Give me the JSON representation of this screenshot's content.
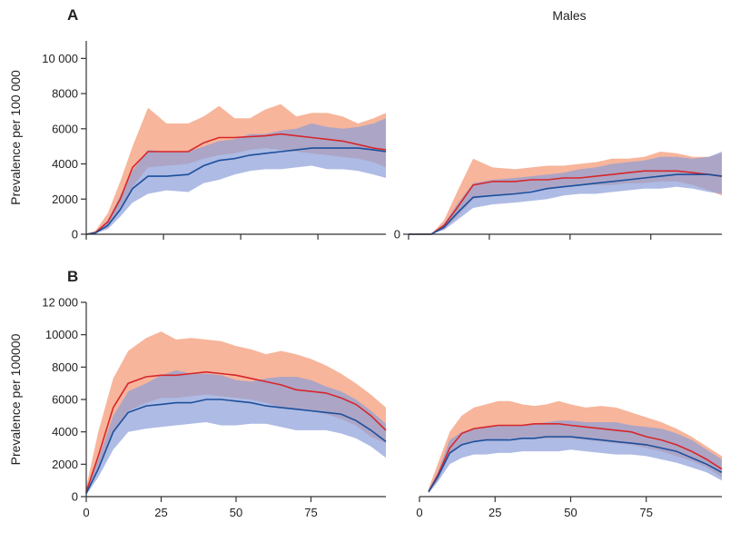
{
  "colors": {
    "red_line": "#d7262a",
    "red_band": "#f6a889",
    "blue_line": "#1c4f9c",
    "blue_band": "#8c9ed8",
    "axis": "#333333"
  },
  "column_titles": [
    "",
    "Males"
  ],
  "chart_data": [
    {
      "type": "area",
      "panel_label": "A",
      "column": "left",
      "ylabel": "Prevalence per 100 000",
      "ylim": [
        0,
        11000
      ],
      "yticks": [
        0,
        2000,
        4000,
        6000,
        8000,
        10000
      ],
      "ytick_labels": [
        "0",
        "2000",
        "4000",
        "6000",
        "8000",
        "10 000"
      ],
      "xlim": [
        0,
        97
      ],
      "xticks": [
        0,
        25,
        50,
        75
      ],
      "xtick_labels": [],
      "x": [
        0,
        3,
        7,
        11,
        15,
        20,
        26,
        33,
        38,
        43,
        48,
        53,
        58,
        63,
        68,
        73,
        78,
        83,
        88,
        93,
        97
      ],
      "series": [
        {
          "color": "red",
          "values": [
            0,
            100,
            700,
            2000,
            3800,
            4700,
            4700,
            4700,
            5200,
            5500,
            5500,
            5550,
            5600,
            5700,
            5600,
            5500,
            5400,
            5300,
            5100,
            4900,
            4800
          ],
          "lower": [
            0,
            50,
            400,
            1500,
            2700,
            3800,
            3900,
            4000,
            4300,
            4500,
            4600,
            4800,
            4900,
            4800,
            4700,
            4600,
            4500,
            4400,
            4300,
            4100,
            3800
          ],
          "upper": [
            0,
            200,
            1200,
            3000,
            5000,
            7200,
            6300,
            6300,
            6700,
            7300,
            6600,
            6600,
            7100,
            7400,
            6700,
            6900,
            6900,
            6700,
            6300,
            6600,
            6900
          ]
        },
        {
          "color": "blue",
          "values": [
            0,
            80,
            500,
            1400,
            2600,
            3300,
            3300,
            3400,
            3900,
            4200,
            4300,
            4500,
            4600,
            4700,
            4800,
            4900,
            4900,
            4900,
            4900,
            4800,
            4700
          ],
          "lower": [
            0,
            40,
            300,
            1000,
            1800,
            2300,
            2500,
            2400,
            2900,
            3100,
            3400,
            3600,
            3700,
            3700,
            3800,
            3900,
            3700,
            3700,
            3600,
            3400,
            3200
          ],
          "upper": [
            0,
            150,
            800,
            2200,
            3600,
            4800,
            4700,
            4700,
            5000,
            5300,
            5400,
            5700,
            5700,
            5900,
            6000,
            6300,
            6100,
            6000,
            6100,
            6300,
            6600
          ]
        }
      ]
    },
    {
      "type": "area",
      "panel_label": "",
      "column": "right",
      "ylabel": "",
      "ylim": [
        0,
        11000
      ],
      "yticks": [
        0
      ],
      "ytick_labels": [
        "0"
      ],
      "xlim": [
        0,
        97
      ],
      "xticks": [
        0,
        25,
        50,
        75
      ],
      "xtick_labels": [],
      "x": [
        0,
        3,
        7,
        11,
        15,
        20,
        26,
        33,
        38,
        43,
        48,
        53,
        58,
        63,
        68,
        73,
        78,
        83,
        88,
        93,
        97
      ],
      "series": [
        {
          "color": "red",
          "values": [
            0,
            0,
            0,
            500,
            1500,
            2800,
            3000,
            3000,
            3100,
            3100,
            3200,
            3200,
            3300,
            3400,
            3500,
            3600,
            3600,
            3600,
            3500,
            3400,
            3300
          ],
          "lower": [
            0,
            0,
            0,
            300,
            1000,
            2000,
            2200,
            2300,
            2500,
            2600,
            2700,
            2800,
            2800,
            2800,
            2900,
            2900,
            3000,
            3000,
            2800,
            2500,
            2200
          ],
          "upper": [
            0,
            0,
            0,
            800,
            2400,
            4300,
            3800,
            3700,
            3800,
            3900,
            3900,
            4000,
            4100,
            4300,
            4300,
            4400,
            4700,
            4600,
            4400,
            4400,
            4600
          ]
        },
        {
          "color": "blue",
          "values": [
            0,
            0,
            0,
            400,
            1200,
            2100,
            2200,
            2300,
            2400,
            2600,
            2700,
            2800,
            2900,
            3000,
            3100,
            3200,
            3300,
            3400,
            3400,
            3400,
            3300
          ],
          "lower": [
            0,
            0,
            0,
            250,
            800,
            1500,
            1700,
            1800,
            1900,
            2000,
            2200,
            2300,
            2300,
            2400,
            2500,
            2600,
            2600,
            2700,
            2600,
            2400,
            2300
          ],
          "upper": [
            0,
            0,
            0,
            600,
            1700,
            2900,
            3100,
            3200,
            3300,
            3400,
            3500,
            3700,
            3800,
            4000,
            4100,
            4200,
            4400,
            4400,
            4300,
            4400,
            4700
          ]
        }
      ]
    },
    {
      "type": "area",
      "panel_label": "B",
      "column": "left",
      "ylabel": "Prevalence per 100000",
      "ylim": [
        0,
        12000
      ],
      "yticks": [
        0,
        2000,
        4000,
        6000,
        8000,
        10000,
        12000
      ],
      "ytick_labels": [
        "0",
        "2000",
        "4000",
        "6000",
        "8000",
        "10000",
        "12 000"
      ],
      "xlim": [
        0,
        100
      ],
      "xticks": [
        0,
        25,
        50,
        75
      ],
      "xtick_labels": [
        "0",
        "25",
        "50",
        "75"
      ],
      "x": [
        0,
        4,
        9,
        14,
        20,
        25,
        30,
        35,
        40,
        45,
        50,
        55,
        60,
        65,
        70,
        75,
        80,
        85,
        90,
        95,
        100
      ],
      "series": [
        {
          "color": "red",
          "values": [
            300,
            2500,
            5500,
            7000,
            7400,
            7500,
            7500,
            7600,
            7700,
            7600,
            7500,
            7300,
            7100,
            6900,
            6600,
            6500,
            6400,
            6100,
            5700,
            5000,
            4100
          ],
          "lower": [
            200,
            1800,
            4000,
            5300,
            5800,
            6100,
            6100,
            6200,
            6300,
            6200,
            6100,
            6000,
            5800,
            5500,
            5400,
            5300,
            5100,
            4800,
            4400,
            3700,
            3300
          ],
          "upper": [
            600,
            4000,
            7300,
            9000,
            9800,
            10200,
            9700,
            9800,
            9700,
            9600,
            9300,
            9100,
            8800,
            9000,
            8800,
            8500,
            8100,
            7600,
            7000,
            6300,
            5500
          ]
        },
        {
          "color": "blue",
          "values": [
            200,
            1700,
            4000,
            5200,
            5600,
            5700,
            5800,
            5800,
            6000,
            6000,
            5900,
            5800,
            5600,
            5500,
            5400,
            5300,
            5200,
            5100,
            4700,
            4100,
            3400
          ],
          "lower": [
            100,
            1200,
            2900,
            4000,
            4200,
            4300,
            4400,
            4500,
            4600,
            4400,
            4400,
            4500,
            4500,
            4300,
            4100,
            4100,
            4100,
            3900,
            3600,
            3100,
            2400
          ],
          "upper": [
            300,
            2300,
            5000,
            6500,
            7000,
            7500,
            7800,
            7600,
            7600,
            7500,
            7200,
            7100,
            7300,
            7400,
            7400,
            7200,
            6800,
            6500,
            6000,
            5300,
            4500
          ]
        }
      ]
    },
    {
      "type": "area",
      "panel_label": "",
      "column": "right",
      "ylabel": "",
      "ylim": [
        0,
        12000
      ],
      "yticks": [],
      "ytick_labels": [],
      "xlim": [
        0,
        100
      ],
      "xticks": [
        0,
        25,
        50,
        75
      ],
      "xtick_labels": [
        "0",
        "25",
        "50",
        "75"
      ],
      "x": [
        3,
        6,
        10,
        14,
        18,
        22,
        26,
        30,
        34,
        38,
        42,
        46,
        50,
        55,
        60,
        65,
        70,
        75,
        80,
        85,
        90,
        95,
        100
      ],
      "series": [
        {
          "color": "red",
          "values": [
            300,
            1300,
            3000,
            3900,
            4200,
            4300,
            4400,
            4400,
            4400,
            4500,
            4500,
            4500,
            4400,
            4300,
            4200,
            4100,
            4000,
            3700,
            3500,
            3200,
            2800,
            2300,
            1700
          ],
          "lower": [
            200,
            1000,
            2600,
            3200,
            3400,
            3500,
            3500,
            3600,
            3600,
            3600,
            3600,
            3600,
            3600,
            3500,
            3400,
            3300,
            3200,
            3000,
            2800,
            2500,
            2200,
            1800,
            1200
          ],
          "upper": [
            500,
            2000,
            4000,
            5000,
            5500,
            5700,
            5900,
            5900,
            5700,
            5600,
            5700,
            5900,
            5700,
            5500,
            5600,
            5500,
            5200,
            4900,
            4600,
            4200,
            3700,
            3100,
            2500
          ]
        },
        {
          "color": "blue",
          "values": [
            300,
            1200,
            2700,
            3200,
            3400,
            3500,
            3500,
            3500,
            3600,
            3600,
            3700,
            3700,
            3700,
            3600,
            3500,
            3400,
            3300,
            3200,
            3000,
            2800,
            2400,
            2000,
            1500
          ],
          "lower": [
            200,
            900,
            2000,
            2400,
            2600,
            2600,
            2700,
            2700,
            2800,
            2800,
            2800,
            2800,
            2900,
            2800,
            2700,
            2600,
            2600,
            2500,
            2300,
            2100,
            1800,
            1500,
            1000
          ],
          "upper": [
            400,
            1500,
            3500,
            4000,
            4200,
            4300,
            4400,
            4400,
            4400,
            4500,
            4600,
            4700,
            4700,
            4600,
            4600,
            4600,
            4400,
            4300,
            4200,
            3900,
            3500,
            2900,
            2300
          ]
        }
      ]
    }
  ]
}
